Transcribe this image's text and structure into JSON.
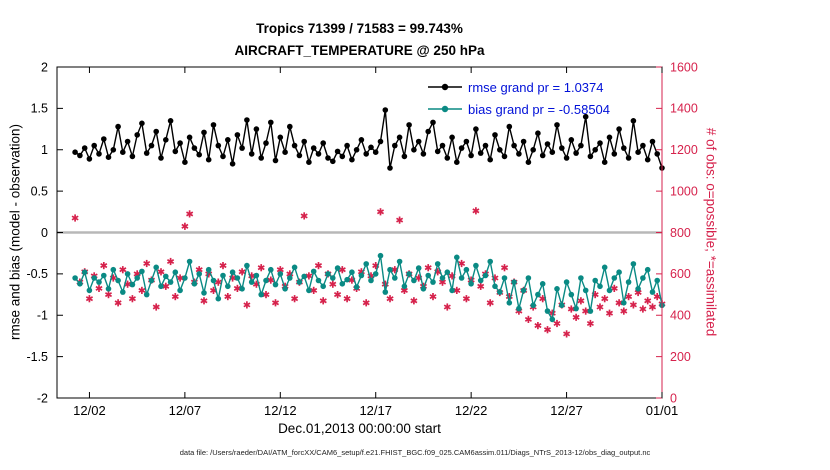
{
  "title": {
    "line1": "Tropics 71399 / 71583 = 99.743%",
    "line2": "AIRCRAFT_TEMPERATURE @ 250 hPa"
  },
  "axes": {
    "ylabel_left": "rmse and bias (model - observation)",
    "ylabel_right": "# of obs: o=possible; *=assimilated",
    "xlabel": "Dec.01,2013 00:00:00 start"
  },
  "legend": [
    {
      "series": "rmse",
      "label": "rmse grand pr = 1.0374"
    },
    {
      "series": "bias",
      "label": "bias grand pr = -0.58504"
    }
  ],
  "footer": "data file: /Users/raeder/DAI/ATM_forcXX/CAM6_setup/f.e21.FHIST_BGC.f09_025.CAM6assim.011/Diags_NTrS_2013-12/obs_diag_output.nc",
  "colors": {
    "rmse": "#000000",
    "bias": "#0a8a84",
    "obs": "#d6224c",
    "legend_text": "#0010d8",
    "zero_line": "#b8b8b8"
  },
  "chart_data": {
    "type": "line",
    "title": "Tropics 71399 / 71583 = 99.743%",
    "subtitle": "AIRCRAFT_TEMPERATURE @ 250 hPa",
    "xlabel": "Dec.01,2013 00:00:00 start",
    "ylabel_left": "rmse and bias (model - observation)",
    "ylabel_right": "# of obs: o=possible; *=assimilated",
    "legend_position": "top-right-inside",
    "grand_rmse": 1.0374,
    "grand_bias": -0.58504,
    "x_unit": "days since 2013-12-01 00:00",
    "xlim": [
      -0.7,
      31
    ],
    "ylim_left": [
      -2,
      2
    ],
    "ylim_right": [
      0,
      1600
    ],
    "xticks": {
      "values": [
        1,
        6,
        11,
        16,
        21,
        26,
        31
      ],
      "labels": [
        "12/02",
        "12/07",
        "12/12",
        "12/17",
        "12/22",
        "12/27",
        "01/01"
      ]
    },
    "yticks_left": {
      "values": [
        2,
        1.5,
        1,
        0.5,
        0,
        -0.5,
        -1,
        -1.5,
        -2
      ],
      "labels": [
        "2",
        "1.5",
        "1",
        "0.5",
        "0",
        "-0.5",
        "-1",
        "-1.5",
        "-2"
      ]
    },
    "yticks_right": {
      "values": [
        1600,
        1400,
        1200,
        1000,
        800,
        600,
        400,
        200,
        0
      ],
      "labels": [
        "1600",
        "1400",
        "1200",
        "1000",
        "800",
        "600",
        "400",
        "200",
        "0"
      ]
    },
    "x": [
      0.25,
      0.5,
      0.75,
      1,
      1.25,
      1.5,
      1.75,
      2,
      2.25,
      2.5,
      2.75,
      3,
      3.25,
      3.5,
      3.75,
      4,
      4.25,
      4.5,
      4.75,
      5,
      5.25,
      5.5,
      5.75,
      6,
      6.25,
      6.5,
      6.75,
      7,
      7.25,
      7.5,
      7.75,
      8,
      8.25,
      8.5,
      8.75,
      9,
      9.25,
      9.5,
      9.75,
      10,
      10.25,
      10.5,
      10.75,
      11,
      11.25,
      11.5,
      11.75,
      12,
      12.25,
      12.5,
      12.75,
      13,
      13.25,
      13.5,
      13.75,
      14,
      14.25,
      14.5,
      14.75,
      15,
      15.25,
      15.5,
      15.75,
      16,
      16.25,
      16.5,
      16.75,
      17,
      17.25,
      17.5,
      17.75,
      18,
      18.25,
      18.5,
      18.75,
      19,
      19.25,
      19.5,
      19.75,
      20,
      20.25,
      20.5,
      20.75,
      21,
      21.25,
      21.5,
      21.75,
      22,
      22.25,
      22.5,
      22.75,
      23,
      23.25,
      23.5,
      23.75,
      24,
      24.25,
      24.5,
      24.75,
      25,
      25.25,
      25.5,
      25.75,
      26,
      26.25,
      26.5,
      26.75,
      27,
      27.25,
      27.5,
      27.75,
      28,
      28.25,
      28.5,
      28.75,
      29,
      29.25,
      29.5,
      29.75,
      30,
      30.25,
      30.5,
      30.75,
      31
    ],
    "series": [
      {
        "name": "rmse",
        "axis": "left",
        "color": "#000000",
        "marker": "circle",
        "values": [
          0.97,
          0.93,
          1.02,
          0.89,
          1.05,
          0.95,
          1.13,
          0.91,
          1.0,
          1.28,
          0.97,
          1.1,
          0.92,
          1.18,
          1.32,
          0.96,
          1.05,
          1.22,
          0.9,
          1.12,
          1.35,
          0.98,
          1.08,
          0.85,
          1.15,
          1.02,
          0.94,
          1.21,
          0.88,
          1.3,
          1.05,
          0.92,
          1.12,
          0.83,
          1.18,
          1.02,
          1.36,
          0.95,
          1.25,
          0.9,
          1.08,
          1.33,
          0.87,
          1.15,
          0.97,
          1.28,
          1.05,
          0.93,
          1.1,
          0.85,
          1.02,
          0.95,
          1.08,
          0.9,
          0.86,
          0.98,
          0.92,
          1.05,
          0.88,
          1.0,
          1.12,
          0.95,
          1.03,
          0.97,
          1.1,
          1.48,
          0.78,
          1.05,
          1.15,
          0.92,
          1.3,
          1.0,
          1.1,
          0.95,
          1.22,
          1.33,
          0.98,
          1.05,
          0.9,
          1.15,
          0.85,
          1.02,
          1.1,
          0.93,
          1.25,
          0.96,
          1.05,
          0.88,
          1.18,
          1.0,
          0.92,
          1.28,
          1.05,
          0.95,
          1.1,
          0.85,
          1.0,
          1.2,
          0.93,
          1.07,
          0.97,
          1.3,
          1.02,
          0.9,
          1.12,
          0.96,
          1.05,
          1.4,
          0.92,
          1.0,
          1.08,
          0.85,
          1.15,
          0.95,
          1.25,
          1.02,
          0.9,
          1.35,
          0.97,
          1.05,
          0.88,
          1.1,
          0.95,
          0.78
        ]
      },
      {
        "name": "bias",
        "axis": "left",
        "color": "#0a8a84",
        "marker": "circle",
        "values": [
          -0.55,
          -0.62,
          -0.48,
          -0.7,
          -0.55,
          -0.6,
          -0.52,
          -0.68,
          -0.45,
          -0.58,
          -0.72,
          -0.5,
          -0.63,
          -0.55,
          -0.47,
          -0.75,
          -0.58,
          -0.42,
          -0.65,
          -0.53,
          -0.6,
          -0.48,
          -0.7,
          -0.55,
          -0.35,
          -0.62,
          -0.5,
          -0.73,
          -0.45,
          -0.58,
          -0.8,
          -0.52,
          -0.65,
          -0.48,
          -0.55,
          -0.68,
          -0.4,
          -0.6,
          -0.52,
          -0.75,
          -0.58,
          -0.45,
          -0.63,
          -0.5,
          -0.68,
          -0.55,
          -0.42,
          -0.6,
          -0.53,
          -0.7,
          -0.47,
          -0.58,
          -0.65,
          -0.5,
          -0.55,
          -0.43,
          -0.62,
          -0.57,
          -0.48,
          -0.66,
          -0.52,
          -0.38,
          -0.58,
          -0.5,
          -0.28,
          -0.72,
          -0.45,
          -0.55,
          -0.35,
          -0.65,
          -0.5,
          -0.58,
          -0.43,
          -0.68,
          -0.52,
          -0.6,
          -0.38,
          -0.55,
          -0.48,
          -0.7,
          -0.3,
          -0.55,
          -0.45,
          -0.62,
          -0.4,
          -0.58,
          -0.52,
          -0.35,
          -0.65,
          -0.72,
          -0.55,
          -0.85,
          -0.6,
          -0.92,
          -0.7,
          -0.55,
          -0.88,
          -0.75,
          -0.62,
          -0.95,
          -1.05,
          -0.68,
          -0.88,
          -0.6,
          -0.75,
          -0.92,
          -0.55,
          -0.7,
          -0.95,
          -0.58,
          -0.65,
          -0.42,
          -0.7,
          -0.55,
          -0.48,
          -0.85,
          -0.6,
          -0.38,
          -0.68,
          -0.55,
          -0.45,
          -0.72,
          -0.58,
          -0.88
        ]
      },
      {
        "name": "obs_assimilated",
        "axis": "right",
        "color": "#d6224c",
        "marker": "asterisk",
        "values": [
          870,
          560,
          610,
          480,
          590,
          530,
          640,
          500,
          580,
          460,
          620,
          550,
          480,
          600,
          520,
          650,
          570,
          440,
          610,
          540,
          660,
          490,
          580,
          830,
          890,
          560,
          620,
          470,
          600,
          520,
          560,
          640,
          490,
          580,
          530,
          610,
          450,
          590,
          550,
          630,
          500,
          570,
          460,
          620,
          540,
          600,
          480,
          560,
          880,
          590,
          520,
          640,
          470,
          600,
          550,
          500,
          620,
          480,
          570,
          530,
          610,
          460,
          590,
          640,
          900,
          550,
          480,
          620,
          860,
          520,
          600,
          470,
          580,
          540,
          630,
          490,
          610,
          560,
          440,
          590,
          520,
          650,
          480,
          570,
          905,
          540,
          600,
          460,
          580,
          510,
          630,
          490,
          560,
          420,
          520,
          380,
          440,
          350,
          480,
          330,
          410,
          360,
          450,
          310,
          430,
          390,
          470,
          420,
          360,
          500,
          440,
          480,
          410,
          530,
          460,
          420,
          490,
          450,
          510,
          430,
          470,
          440,
          490,
          455
        ]
      }
    ]
  }
}
